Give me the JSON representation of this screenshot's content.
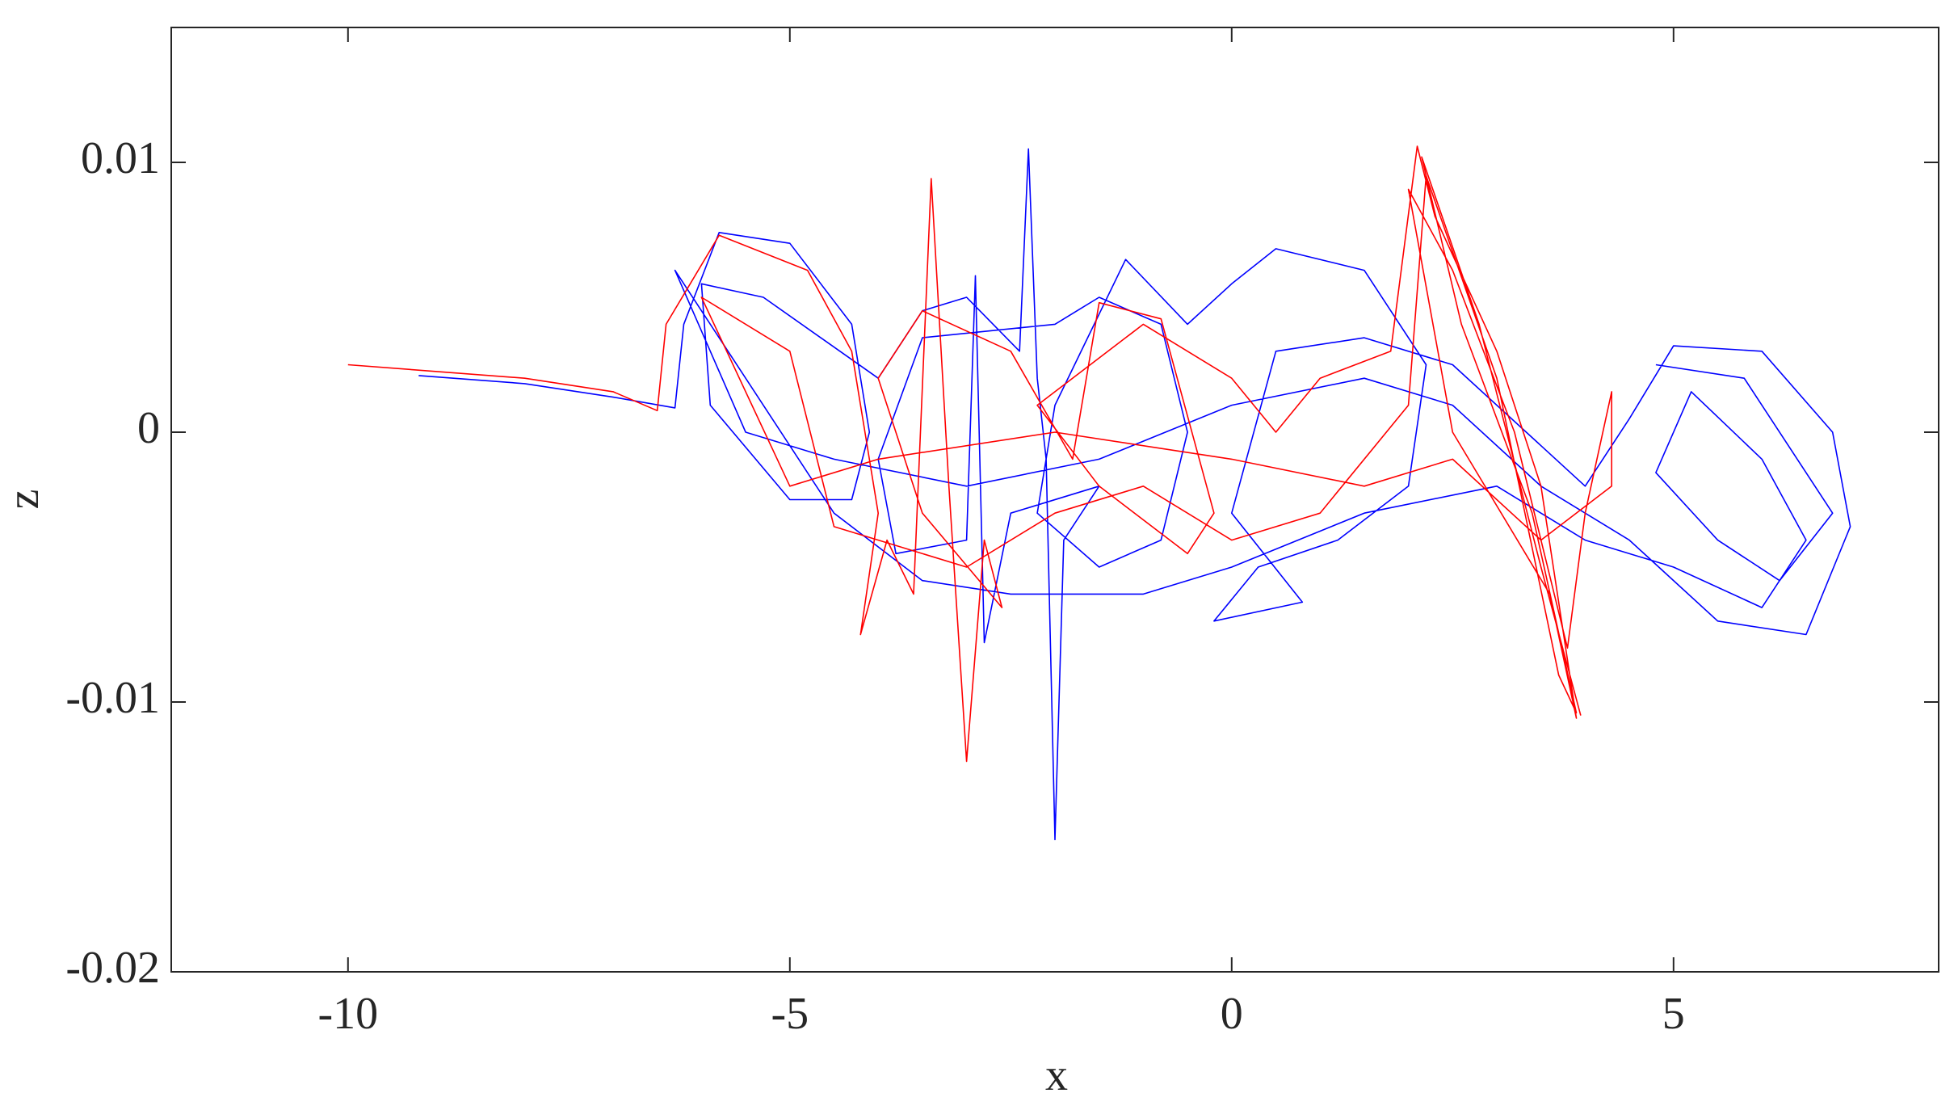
{
  "chart_data": {
    "type": "line",
    "xlabel": "x",
    "ylabel": "z",
    "xlim": [
      -12,
      8
    ],
    "ylim": [
      -0.02,
      0.015
    ],
    "xticks": [
      -10,
      -5,
      0,
      5
    ],
    "yticks": [
      -0.02,
      -0.01,
      0,
      0.01
    ],
    "series": [
      {
        "color": "#0000ff",
        "x": [
          -9.2,
          -8,
          -7,
          -6.3,
          -6.2,
          -5.8,
          -5,
          -4.3,
          -4.1,
          -4.3,
          -5,
          -5.9,
          -6,
          -5.3,
          -4,
          -3.5,
          -3,
          -2.4,
          -2.3,
          -2.2,
          -2.1,
          -2,
          -1.9,
          -1.5,
          -2.5,
          -2.8,
          -2.9,
          -3,
          -3.8,
          -4,
          -3.5,
          -2,
          -1.5,
          -0.8,
          -0.5,
          -0.8,
          -1.5,
          -2.2,
          -2,
          -1.2,
          -0.5,
          0,
          0.5,
          1.5,
          2.2,
          2,
          1.2,
          0.3,
          -0.2,
          0.8,
          0,
          0.5,
          1.5,
          2.5,
          3.5,
          4,
          4.5,
          5,
          6,
          6.8,
          7,
          6.5,
          5.5,
          4.5,
          3.5,
          2.5,
          1.5,
          0,
          -1.5,
          -3,
          -4.5,
          -5.5,
          -6.3,
          -5.5,
          -4.5,
          -3.5,
          -2.5,
          -1,
          0,
          1.5,
          3,
          4,
          5,
          6,
          6.5,
          6,
          5.2,
          4.8,
          5.5,
          6.2,
          6.8,
          5.8,
          4.8
        ],
        "values": [
          0.0021,
          0.0018,
          0.0013,
          0.0009,
          0.004,
          0.0074,
          0.007,
          0.004,
          0,
          -0.0025,
          -0.0025,
          0.001,
          0.0055,
          0.005,
          0.002,
          0.0045,
          0.005,
          0.003,
          0.0105,
          0.002,
          -0.001,
          -0.0151,
          -0.004,
          -0.002,
          -0.003,
          -0.0078,
          0.0058,
          -0.004,
          -0.0045,
          -0.001,
          0.0035,
          0.004,
          0.005,
          0.004,
          0,
          -0.004,
          -0.005,
          -0.003,
          0.001,
          0.0064,
          0.004,
          0.0055,
          0.0068,
          0.006,
          0.0025,
          -0.002,
          -0.004,
          -0.005,
          -0.007,
          -0.0063,
          -0.003,
          0.003,
          0.0035,
          0.0025,
          -0.0005,
          -0.002,
          0.0005,
          0.0032,
          0.003,
          0,
          -0.0035,
          -0.0075,
          -0.007,
          -0.004,
          -0.002,
          0.001,
          0.002,
          0.001,
          -0.001,
          -0.002,
          -0.001,
          0,
          0.006,
          0.002,
          -0.003,
          -0.0055,
          -0.006,
          -0.006,
          -0.005,
          -0.003,
          -0.002,
          -0.004,
          -0.005,
          -0.0065,
          -0.004,
          -0.001,
          0.0015,
          -0.0015,
          -0.004,
          -0.0055,
          -0.003,
          0.002,
          0.0025
        ]
      },
      {
        "color": "#ff0000",
        "x": [
          -10,
          -8,
          -7,
          -6.5,
          -6.4,
          -5.8,
          -4.8,
          -4.3,
          -4,
          -4.2,
          -3.9,
          -3.6,
          -3.4,
          -3.2,
          -3,
          -2.8,
          -2.6,
          -3.5,
          -4,
          -3.5,
          -2.5,
          -1.8,
          -1.5,
          -0.8,
          -0.2,
          -0.5,
          -1.5,
          -2.2,
          -1,
          0,
          0.5,
          1,
          1.8,
          2.1,
          2.3,
          3,
          3.5,
          3.9,
          3.6,
          2.5,
          2,
          2.5,
          3.2,
          3.8,
          4,
          4.3,
          4.3,
          3.5,
          2.5,
          1.5,
          0,
          -2,
          -4,
          -5,
          -6,
          -5,
          -4.5,
          -3,
          -2,
          -1,
          0,
          1,
          2,
          2.2,
          3,
          3.7,
          3.9,
          3.4,
          2.6,
          2.15,
          2.8,
          3.5,
          3.95
        ],
        "values": [
          0.0025,
          0.002,
          0.0015,
          0.0008,
          0.004,
          0.0073,
          0.006,
          0.003,
          -0.003,
          -0.0075,
          -0.004,
          -0.006,
          0.0094,
          -0.002,
          -0.0122,
          -0.004,
          -0.0065,
          -0.003,
          0.002,
          0.0045,
          0.003,
          -0.001,
          0.0048,
          0.0042,
          -0.003,
          -0.0045,
          -0.002,
          0.001,
          0.004,
          0.002,
          0,
          0.002,
          0.003,
          0.0106,
          0.008,
          0.003,
          -0.002,
          -0.0106,
          -0.006,
          0,
          0.009,
          0.006,
          0,
          -0.008,
          -0.003,
          0.0015,
          -0.002,
          -0.004,
          -0.001,
          -0.002,
          -0.001,
          0,
          -0.001,
          -0.002,
          0.005,
          0.003,
          -0.0035,
          -0.005,
          -0.003,
          -0.002,
          -0.004,
          -0.003,
          0.001,
          0.0095,
          0.002,
          -0.009,
          -0.0104,
          -0.003,
          0.004,
          0.0102,
          0.004,
          -0.005,
          -0.0105
        ]
      }
    ]
  }
}
